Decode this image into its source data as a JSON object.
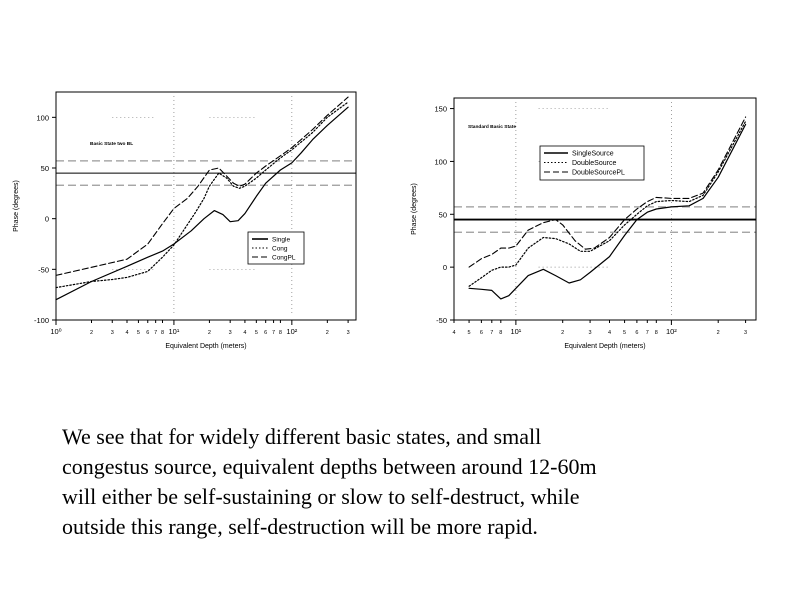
{
  "chart_data": [
    {
      "type": "line",
      "annotation": "Basic State two BL",
      "xlabel": "Equivalent Depth (meters)",
      "ylabel": "Phase (degrees)",
      "xscale": "log",
      "xlim": [
        1,
        350
      ],
      "ylim": [
        -100,
        125
      ],
      "yticks": [
        -100,
        -50,
        0,
        50,
        100
      ],
      "xtick_labels": [
        {
          "value": 1,
          "label": "10⁰"
        },
        {
          "value": 2,
          "label": "2"
        },
        {
          "value": 3,
          "label": "3"
        },
        {
          "value": 4,
          "label": "4"
        },
        {
          "value": 5,
          "label": "5"
        },
        {
          "value": 6,
          "label": "6"
        },
        {
          "value": 7,
          "label": "7"
        },
        {
          "value": 8,
          "label": "8"
        },
        {
          "value": 10,
          "label": "10¹"
        },
        {
          "value": 20,
          "label": "2"
        },
        {
          "value": 30,
          "label": "3"
        },
        {
          "value": 40,
          "label": "4"
        },
        {
          "value": 50,
          "label": "5"
        },
        {
          "value": 60,
          "label": "6"
        },
        {
          "value": 70,
          "label": "7"
        },
        {
          "value": 80,
          "label": "8"
        },
        {
          "value": 100,
          "label": "10²"
        },
        {
          "value": 200,
          "label": "2"
        },
        {
          "value": 300,
          "label": "3"
        }
      ],
      "hlines": [
        {
          "y": 45,
          "style": "solid"
        },
        {
          "y": 57,
          "style": "dashed"
        },
        {
          "y": 33,
          "style": "dashed"
        }
      ],
      "legend": {
        "position": "bottom-right",
        "entries": [
          "Single",
          "Cong",
          "CongPL"
        ]
      },
      "series": [
        {
          "name": "Single",
          "style": "solid",
          "x": [
            1,
            2,
            4,
            6,
            8,
            10,
            14,
            18,
            22,
            26,
            30,
            35,
            40,
            50,
            60,
            80,
            100,
            120,
            150,
            200,
            300
          ],
          "y": [
            -80,
            -62,
            -47,
            -38,
            -32,
            -25,
            -12,
            0,
            8,
            4,
            -3,
            -2,
            5,
            22,
            35,
            48,
            55,
            65,
            78,
            92,
            110
          ]
        },
        {
          "name": "Cong",
          "style": "dotted",
          "x": [
            1,
            2,
            3,
            4,
            6,
            8,
            10,
            12,
            15,
            18,
            20,
            24,
            28,
            32,
            36,
            40,
            50,
            60,
            80,
            100,
            150,
            200,
            300
          ],
          "y": [
            -68,
            -62,
            -60,
            -58,
            -52,
            -38,
            -26,
            -12,
            5,
            20,
            32,
            45,
            40,
            32,
            30,
            32,
            40,
            48,
            60,
            68,
            85,
            100,
            115
          ]
        },
        {
          "name": "CongPL",
          "style": "dashed",
          "x": [
            1,
            2,
            4,
            6,
            8,
            10,
            13,
            16,
            20,
            24,
            28,
            32,
            36,
            40,
            50,
            60,
            80,
            100,
            150,
            200,
            300
          ],
          "y": [
            -56,
            -48,
            -40,
            -25,
            -5,
            10,
            20,
            32,
            48,
            50,
            42,
            35,
            32,
            34,
            45,
            52,
            62,
            70,
            88,
            102,
            120
          ]
        }
      ]
    },
    {
      "type": "line",
      "annotation": "Standard Basic State",
      "xlabel": "Equivalent Depth (meters)",
      "ylabel": "Phase (degrees)",
      "xscale": "log",
      "xlim": [
        4,
        350
      ],
      "ylim": [
        -50,
        160
      ],
      "yticks": [
        -50,
        0,
        50,
        100,
        150
      ],
      "xtick_labels": [
        {
          "value": 4,
          "label": "4"
        },
        {
          "value": 5,
          "label": "5"
        },
        {
          "value": 6,
          "label": "6"
        },
        {
          "value": 7,
          "label": "7"
        },
        {
          "value": 8,
          "label": "8"
        },
        {
          "value": 10,
          "label": "10¹"
        },
        {
          "value": 20,
          "label": "2"
        },
        {
          "value": 30,
          "label": "3"
        },
        {
          "value": 40,
          "label": "4"
        },
        {
          "value": 50,
          "label": "5"
        },
        {
          "value": 60,
          "label": "6"
        },
        {
          "value": 70,
          "label": "7"
        },
        {
          "value": 80,
          "label": "8"
        },
        {
          "value": 100,
          "label": "10²"
        },
        {
          "value": 200,
          "label": "2"
        },
        {
          "value": 300,
          "label": "3"
        }
      ],
      "hlines": [
        {
          "y": 45,
          "style": "solid"
        },
        {
          "y": 57,
          "style": "dashed"
        },
        {
          "y": 33,
          "style": "dashed"
        }
      ],
      "legend": {
        "position": "top-right",
        "entries": [
          "SingleSource",
          "DoubleSource",
          "DoubleSourcePL"
        ]
      },
      "series": [
        {
          "name": "SingleSource",
          "style": "solid",
          "x": [
            5,
            6,
            7,
            8,
            9,
            10,
            12,
            15,
            18,
            22,
            26,
            30,
            40,
            50,
            60,
            70,
            80,
            100,
            130,
            160,
            200,
            300
          ],
          "y": [
            -20,
            -21,
            -22,
            -30,
            -27,
            -20,
            -8,
            -2,
            -8,
            -15,
            -12,
            -5,
            10,
            30,
            45,
            52,
            55,
            57,
            58,
            65,
            85,
            135
          ]
        },
        {
          "name": "DoubleSource",
          "style": "dotted",
          "x": [
            5,
            6,
            7,
            8,
            9,
            10,
            12,
            15,
            18,
            22,
            26,
            30,
            40,
            50,
            60,
            70,
            80,
            100,
            130,
            160,
            200,
            300
          ],
          "y": [
            -18,
            -10,
            -3,
            0,
            0,
            2,
            18,
            28,
            27,
            22,
            15,
            15,
            25,
            40,
            50,
            58,
            62,
            63,
            62,
            68,
            90,
            138
          ]
        },
        {
          "name": "DoubleSourcePL",
          "style": "dashed",
          "x": [
            5,
            6,
            7,
            8,
            9,
            10,
            12,
            15,
            18,
            20,
            24,
            28,
            32,
            40,
            50,
            60,
            70,
            80,
            100,
            130,
            160,
            200,
            300
          ],
          "y": [
            0,
            8,
            12,
            18,
            18,
            20,
            35,
            42,
            45,
            40,
            25,
            17,
            18,
            28,
            45,
            55,
            62,
            66,
            65,
            65,
            70,
            92,
            142
          ]
        }
      ]
    }
  ],
  "caption": {
    "lines": [
      "We see that for widely different basic states, and small",
      "congestus source, equivalent depths between around 12-60m",
      "will either be self-sustaining or slow to self-destruct, while",
      "outside this range, self-destruction will be more rapid."
    ]
  }
}
